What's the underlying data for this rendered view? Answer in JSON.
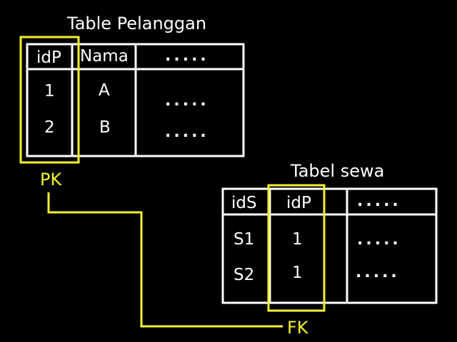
{
  "colors": {
    "background": "#000000",
    "lines": "#ffffff",
    "highlight": "#f2f22e"
  },
  "pelanggan": {
    "title": "Table Pelanggan",
    "headers": [
      "idP",
      "Nama",
      "....."
    ],
    "rows": [
      [
        "1",
        "A",
        "....."
      ],
      [
        "2",
        "B",
        "....."
      ]
    ]
  },
  "sewa": {
    "title": "Tabel sewa",
    "headers": [
      "idS",
      "idP",
      "....."
    ],
    "rows": [
      [
        "S1",
        "1",
        "....."
      ],
      [
        "S2",
        "1",
        "....."
      ]
    ]
  },
  "labels": {
    "pk": "PK",
    "fk": "FK"
  }
}
